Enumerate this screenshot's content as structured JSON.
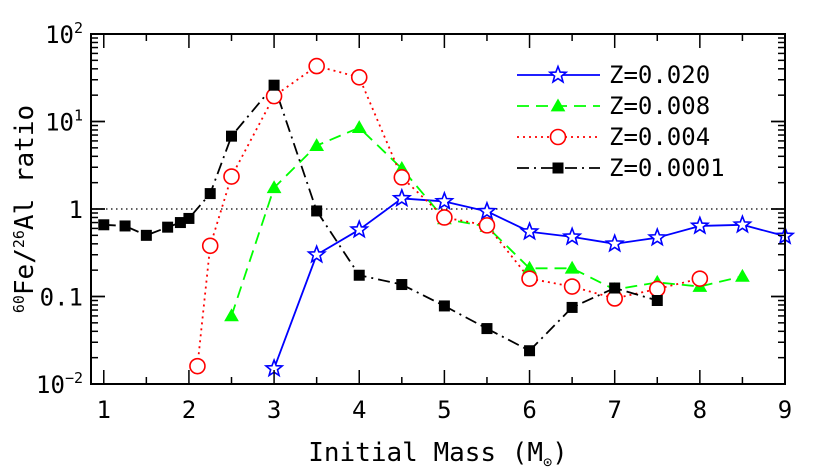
{
  "chart_data": {
    "type": "line",
    "xlabel": "Initial Mass (M",
    "xlabel_symbol": "⊙",
    "xlabel_close": ")",
    "ylabel_parts": [
      "60",
      "Fe/",
      "26",
      "Al ratio"
    ],
    "xlim": [
      0.85,
      9.0
    ],
    "ylim": [
      0.01,
      100
    ],
    "y_scale": "log",
    "x_ticks": [
      "1",
      "2",
      "3",
      "4",
      "5",
      "6",
      "7",
      "8",
      "9"
    ],
    "y_ticks": [
      {
        "value": 0.01,
        "base": "10",
        "exp": "−2"
      },
      {
        "value": 0.1,
        "base": "0.1",
        "exp": ""
      },
      {
        "value": 1,
        "base": "1",
        "exp": ""
      },
      {
        "value": 10,
        "base": "10",
        "exp": "1"
      },
      {
        "value": 100,
        "base": "10",
        "exp": "2"
      }
    ],
    "reference_line": {
      "y": 1,
      "style": "dotted"
    },
    "legend_position": "top-right",
    "series": [
      {
        "name": "Z=0.020",
        "color": "#0000ff",
        "dash": "",
        "marker": "star",
        "x": [
          3.0,
          3.5,
          4.0,
          4.5,
          5.0,
          5.5,
          6.0,
          6.5,
          7.0,
          7.5,
          8.0,
          8.5,
          9.0
        ],
        "y": [
          0.015,
          0.3,
          0.58,
          1.32,
          1.22,
          0.94,
          0.55,
          0.48,
          0.4,
          0.47,
          0.64,
          0.66,
          0.49
        ]
      },
      {
        "name": "Z=0.008",
        "color": "#00ff00",
        "dash": "12,7",
        "marker": "triangle",
        "x": [
          2.5,
          3.0,
          3.5,
          4.0,
          4.5,
          5.0,
          5.5,
          6.0,
          6.5,
          7.0,
          7.5,
          8.0,
          8.5
        ],
        "y": [
          0.06,
          1.75,
          5.3,
          8.5,
          2.9,
          0.77,
          0.63,
          0.21,
          0.21,
          0.12,
          0.145,
          0.13,
          0.17
        ]
      },
      {
        "name": "Z=0.004",
        "color": "#ff0000",
        "dash": "2,4",
        "marker": "circle",
        "x": [
          2.1,
          2.25,
          2.5,
          3.0,
          3.5,
          4.0,
          4.5,
          5.0,
          5.5,
          6.0,
          6.5,
          7.0,
          7.5,
          8.0
        ],
        "y": [
          0.016,
          0.38,
          2.35,
          19.5,
          43.0,
          32.0,
          2.3,
          0.8,
          0.65,
          0.16,
          0.13,
          0.095,
          0.122,
          0.16
        ]
      },
      {
        "name": "Z=0.0001",
        "color": "#000000",
        "dash": "12,5,2,5",
        "marker": "square",
        "x": [
          1.0,
          1.25,
          1.5,
          1.75,
          1.9,
          2.0,
          2.25,
          2.5,
          3.0,
          3.5,
          4.0,
          4.5,
          5.0,
          5.5,
          6.0,
          6.5,
          7.0,
          7.5
        ],
        "y": [
          0.66,
          0.64,
          0.5,
          0.62,
          0.7,
          0.78,
          1.5,
          6.8,
          26.0,
          0.95,
          0.175,
          0.137,
          0.078,
          0.043,
          0.024,
          0.075,
          0.125,
          0.09
        ]
      }
    ]
  }
}
